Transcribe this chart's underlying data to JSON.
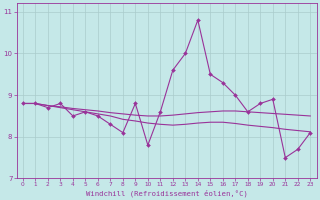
{
  "xlabel": "Windchill (Refroidissement éolien,°C)",
  "background_color": "#c5e8e8",
  "grid_color": "#aacccc",
  "line_color": "#993399",
  "xlim": [
    -0.5,
    23.5
  ],
  "ylim": [
    7,
    11.2
  ],
  "yticks": [
    7,
    8,
    9,
    10,
    11
  ],
  "xticks": [
    0,
    1,
    2,
    3,
    4,
    5,
    6,
    7,
    8,
    9,
    10,
    11,
    12,
    13,
    14,
    15,
    16,
    17,
    18,
    19,
    20,
    21,
    22,
    23
  ],
  "series1": [
    8.8,
    8.8,
    8.7,
    8.8,
    8.5,
    8.6,
    8.5,
    8.3,
    8.1,
    8.8,
    7.8,
    8.6,
    9.6,
    10.0,
    10.8,
    9.5,
    9.3,
    9.0,
    8.6,
    8.8,
    8.9,
    7.5,
    7.7,
    8.1
  ],
  "series2": [
    8.8,
    8.8,
    8.75,
    8.72,
    8.68,
    8.65,
    8.62,
    8.58,
    8.55,
    8.52,
    8.5,
    8.5,
    8.52,
    8.55,
    8.58,
    8.6,
    8.62,
    8.62,
    8.6,
    8.58,
    8.56,
    8.54,
    8.52,
    8.5
  ],
  "series3": [
    8.8,
    8.8,
    8.75,
    8.7,
    8.65,
    8.6,
    8.55,
    8.5,
    8.42,
    8.38,
    8.33,
    8.3,
    8.28,
    8.3,
    8.33,
    8.35,
    8.35,
    8.32,
    8.28,
    8.25,
    8.22,
    8.18,
    8.15,
    8.12
  ]
}
